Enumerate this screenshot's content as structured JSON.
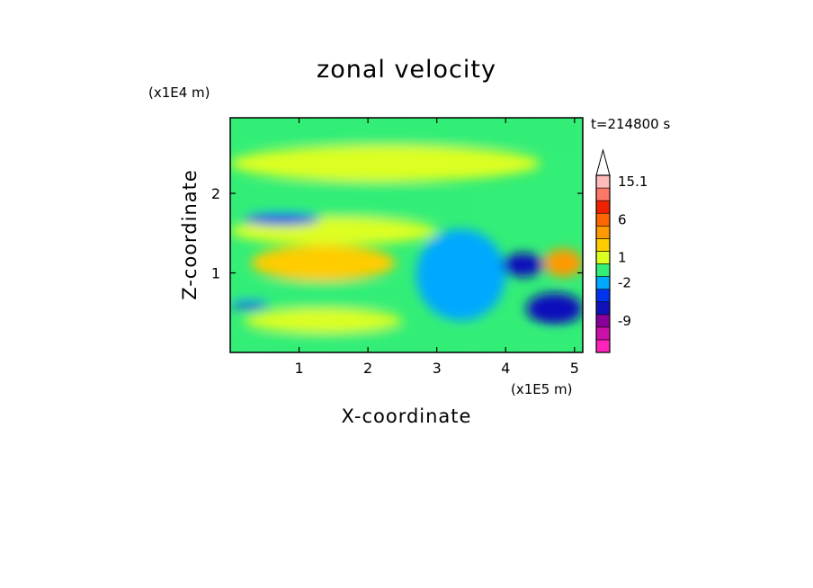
{
  "chart_data": {
    "type": "heatmap",
    "title": "zonal velocity",
    "xlabel": "X-coordinate",
    "ylabel": "Z-coordinate",
    "x_unit": "(x1E5 m)",
    "y_unit": "(x1E4 m)",
    "time_label": "t=214800 s",
    "xlim": [
      0,
      5.12
    ],
    "ylim": [
      0,
      2.95
    ],
    "x_ticks": [
      {
        "value": 1,
        "label": "1"
      },
      {
        "value": 2,
        "label": "2"
      },
      {
        "value": 3,
        "label": "3"
      },
      {
        "value": 4,
        "label": "4"
      },
      {
        "value": 5,
        "label": "5"
      }
    ],
    "y_ticks": [
      {
        "value": 1,
        "label": "1"
      },
      {
        "value": 2,
        "label": "2"
      }
    ],
    "colorbar": {
      "levels": [
        {
          "color": "#ff22bb"
        },
        {
          "color": "#cc11aa"
        },
        {
          "color": "#880099"
        },
        {
          "color": "#1111bb"
        },
        {
          "color": "#0033ee"
        },
        {
          "color": "#00a8ff"
        },
        {
          "color": "#33ee77"
        },
        {
          "color": "#ddff22"
        },
        {
          "color": "#ffcc00"
        },
        {
          "color": "#ff9900"
        },
        {
          "color": "#ff6600"
        },
        {
          "color": "#ee2200"
        },
        {
          "color": "#ff7766"
        },
        {
          "color": "#ffbbbb"
        }
      ],
      "labels": [
        {
          "text": "-9",
          "level": 2
        },
        {
          "text": "-2",
          "level": 5
        },
        {
          "text": "1",
          "level": 7
        },
        {
          "text": "6",
          "level": 10
        },
        {
          "text": "15.1",
          "level": 13
        }
      ],
      "extend_max": true
    },
    "regions": [
      {
        "name": "band-lower",
        "x": [
          0,
          5.12
        ],
        "y": [
          0.05,
          0.25
        ],
        "level": 6
      },
      {
        "name": "band-low-yellow",
        "x": [
          0.2,
          2.5
        ],
        "y": [
          0.25,
          0.55
        ],
        "level": 7
      },
      {
        "name": "band-mid-green",
        "x": [
          0,
          2.5
        ],
        "y": [
          0.55,
          0.9
        ],
        "level": 6
      },
      {
        "name": "band-mid-orange",
        "x": [
          0.3,
          2.4
        ],
        "y": [
          0.9,
          1.35
        ],
        "level": 8
      },
      {
        "name": "band-mid-yellow",
        "x": [
          0,
          3.0
        ],
        "y": [
          1.35,
          1.7
        ],
        "level": 7
      },
      {
        "name": "band-upper-green",
        "x": [
          0,
          3.4
        ],
        "y": [
          1.7,
          2.15
        ],
        "level": 6
      },
      {
        "name": "band-top-yellow",
        "x": [
          0,
          4.5
        ],
        "y": [
          2.15,
          2.6
        ],
        "level": 7
      },
      {
        "name": "band-top-green",
        "x": [
          0,
          5.12
        ],
        "y": [
          2.6,
          2.95
        ],
        "level": 6
      },
      {
        "name": "cyan-plume",
        "x": [
          2.7,
          4.0
        ],
        "y": [
          0.4,
          1.55
        ],
        "level": 5
      },
      {
        "name": "east-core",
        "x": [
          3.95,
          4.55
        ],
        "y": [
          0.95,
          1.25
        ],
        "level": 3
      },
      {
        "name": "east-orange",
        "x": [
          4.55,
          5.12
        ],
        "y": [
          0.95,
          1.3
        ],
        "level": 9
      },
      {
        "name": "east-lower",
        "x": [
          4.3,
          5.12
        ],
        "y": [
          0.35,
          0.75
        ],
        "level": 3
      },
      {
        "name": "west-jet",
        "x": [
          0,
          0.55
        ],
        "y": [
          0.55,
          0.65
        ],
        "level": 4
      },
      {
        "name": "upper-jet",
        "x": [
          0.2,
          1.3
        ],
        "y": [
          1.6,
          1.75
        ],
        "level": 4
      }
    ]
  }
}
